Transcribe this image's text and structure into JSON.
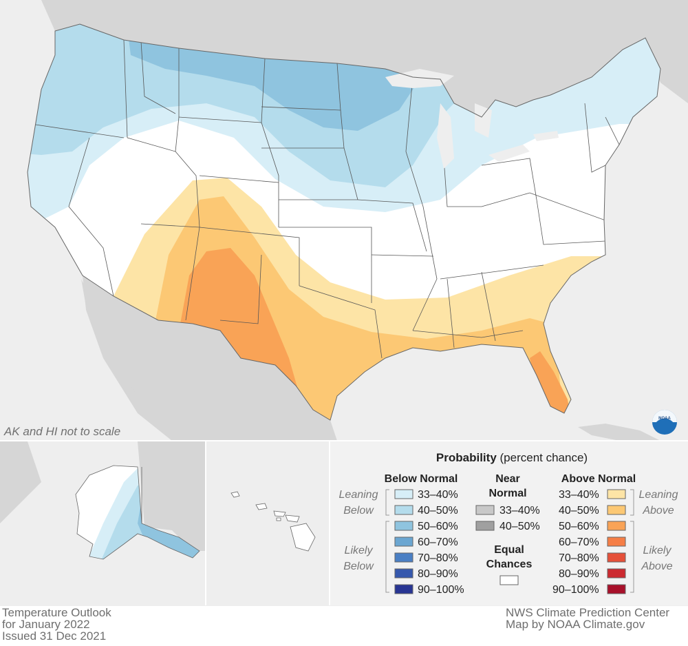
{
  "map": {
    "scale_note": "AK and HI not to scale",
    "logo_text": "NOAA",
    "colors": {
      "ocean": "#eeeeee",
      "land_outside": "#d6d6d6",
      "states": "#ffffff",
      "borders": "#555555",
      "panel_border": "#ffffff"
    }
  },
  "legend": {
    "title_bold": "Probability",
    "title_normal": " (percent chance)",
    "below_header": "Below Normal",
    "near_header_line1": "Near",
    "near_header_line2": "Normal",
    "above_header": "Above Normal",
    "equal_line1": "Equal",
    "equal_line2": "Chances",
    "leaning_below_1": "Leaning",
    "leaning_below_2": "Below",
    "likely_below_1": "Likely",
    "likely_below_2": "Below",
    "leaning_above_1": "Leaning",
    "leaning_above_2": "Above",
    "likely_above_1": "Likely",
    "likely_above_2": "Above",
    "below": [
      {
        "label": "33–40%",
        "color": "#d7eef7"
      },
      {
        "label": "40–50%",
        "color": "#b4dcec"
      },
      {
        "label": "50–60%",
        "color": "#8fc4df"
      },
      {
        "label": "60–70%",
        "color": "#6ba6d1"
      },
      {
        "label": "70–80%",
        "color": "#4a7fc4"
      },
      {
        "label": "80–90%",
        "color": "#3658ad"
      },
      {
        "label": "90–100%",
        "color": "#283593"
      }
    ],
    "near": [
      {
        "label": "33–40%",
        "color": "#c8c8c8"
      },
      {
        "label": "40–50%",
        "color": "#a0a0a0"
      }
    ],
    "equal": {
      "color": "#ffffff"
    },
    "above": [
      {
        "label": "33–40%",
        "color": "#fde4a6"
      },
      {
        "label": "40–50%",
        "color": "#fcc874"
      },
      {
        "label": "50–60%",
        "color": "#f9a356"
      },
      {
        "label": "60–70%",
        "color": "#f57e46"
      },
      {
        "label": "70–80%",
        "color": "#e55039"
      },
      {
        "label": "80–90%",
        "color": "#cc2a30"
      },
      {
        "label": "90–100%",
        "color": "#a8102a"
      }
    ]
  },
  "credits": {
    "left_line1": "Temperature Outlook",
    "left_line2": "for January 2022",
    "left_line3": "Issued 31 Dec 2021",
    "right_line1": "NWS Climate Prediction Center",
    "right_line2": "Map by NOAA Climate.gov"
  }
}
